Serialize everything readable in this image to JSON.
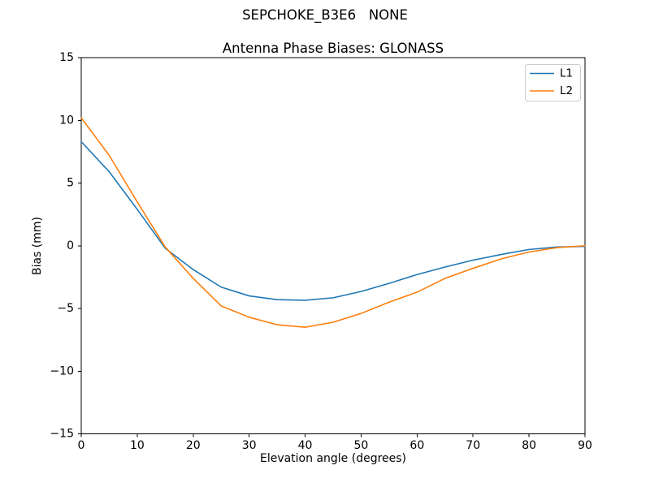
{
  "figure": {
    "suptitle": "SEPCHOKE_B3E6   NONE",
    "title": "Antenna Phase Biases: GLONASS",
    "xlabel": "Elevation angle (degrees)",
    "ylabel": "Bias (mm)"
  },
  "chart_data": {
    "type": "line",
    "suptitle": "SEPCHOKE_B3E6   NONE",
    "title": "Antenna Phase Biases: GLONASS",
    "xlabel": "Elevation angle (degrees)",
    "ylabel": "Bias (mm)",
    "xlim": [
      0,
      90
    ],
    "ylim": [
      -15,
      15
    ],
    "xticks": [
      0,
      10,
      20,
      30,
      40,
      50,
      60,
      70,
      80,
      90
    ],
    "yticks": [
      -15,
      -10,
      -5,
      0,
      5,
      10,
      15
    ],
    "grid": false,
    "legend_position": "upper right",
    "frame": true,
    "x": [
      0,
      5,
      10,
      15,
      20,
      25,
      30,
      35,
      40,
      45,
      50,
      55,
      60,
      65,
      70,
      75,
      80,
      85,
      90
    ],
    "series": [
      {
        "name": "L1",
        "color": "#1f77b4",
        "values": [
          8.3,
          5.9,
          2.9,
          -0.2,
          -1.9,
          -3.3,
          -4.0,
          -4.3,
          -4.35,
          -4.15,
          -3.65,
          -3.0,
          -2.3,
          -1.7,
          -1.15,
          -0.7,
          -0.3,
          -0.1,
          -0.05
        ]
      },
      {
        "name": "L2",
        "color": "#ff7f0e",
        "values": [
          10.2,
          7.2,
          3.5,
          -0.1,
          -2.6,
          -4.8,
          -5.7,
          -6.3,
          -6.5,
          -6.1,
          -5.4,
          -4.5,
          -3.7,
          -2.6,
          -1.8,
          -1.05,
          -0.5,
          -0.15,
          0.0
        ]
      }
    ],
    "legend_labels": [
      "L1",
      "L2"
    ],
    "axis_color": "#000000",
    "legend_border_color": "#cccccc"
  }
}
